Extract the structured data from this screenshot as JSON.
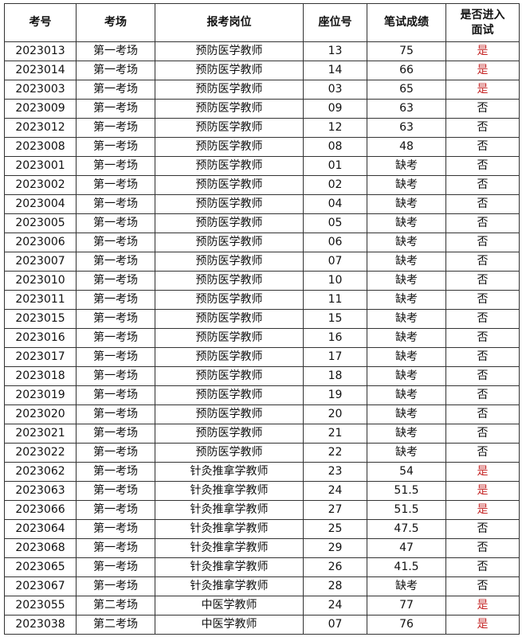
{
  "headers": [
    "考号",
    "考场",
    "报考岗位",
    "座位号",
    "笔试成绩",
    "是否进入面试"
  ],
  "accent_yes_color": "#c62828",
  "rows": [
    [
      "2023013",
      "第一考场",
      "预防医学教师",
      "13",
      "75",
      "是"
    ],
    [
      "2023014",
      "第一考场",
      "预防医学教师",
      "14",
      "66",
      "是"
    ],
    [
      "2023003",
      "第一考场",
      "预防医学教师",
      "03",
      "65",
      "是"
    ],
    [
      "2023009",
      "第一考场",
      "预防医学教师",
      "09",
      "63",
      "否"
    ],
    [
      "2023012",
      "第一考场",
      "预防医学教师",
      "12",
      "63",
      "否"
    ],
    [
      "2023008",
      "第一考场",
      "预防医学教师",
      "08",
      "48",
      "否"
    ],
    [
      "2023001",
      "第一考场",
      "预防医学教师",
      "01",
      "缺考",
      "否"
    ],
    [
      "2023002",
      "第一考场",
      "预防医学教师",
      "02",
      "缺考",
      "否"
    ],
    [
      "2023004",
      "第一考场",
      "预防医学教师",
      "04",
      "缺考",
      "否"
    ],
    [
      "2023005",
      "第一考场",
      "预防医学教师",
      "05",
      "缺考",
      "否"
    ],
    [
      "2023006",
      "第一考场",
      "预防医学教师",
      "06",
      "缺考",
      "否"
    ],
    [
      "2023007",
      "第一考场",
      "预防医学教师",
      "07",
      "缺考",
      "否"
    ],
    [
      "2023010",
      "第一考场",
      "预防医学教师",
      "10",
      "缺考",
      "否"
    ],
    [
      "2023011",
      "第一考场",
      "预防医学教师",
      "11",
      "缺考",
      "否"
    ],
    [
      "2023015",
      "第一考场",
      "预防医学教师",
      "15",
      "缺考",
      "否"
    ],
    [
      "2023016",
      "第一考场",
      "预防医学教师",
      "16",
      "缺考",
      "否"
    ],
    [
      "2023017",
      "第一考场",
      "预防医学教师",
      "17",
      "缺考",
      "否"
    ],
    [
      "2023018",
      "第一考场",
      "预防医学教师",
      "18",
      "缺考",
      "否"
    ],
    [
      "2023019",
      "第一考场",
      "预防医学教师",
      "19",
      "缺考",
      "否"
    ],
    [
      "2023020",
      "第一考场",
      "预防医学教师",
      "20",
      "缺考",
      "否"
    ],
    [
      "2023021",
      "第一考场",
      "预防医学教师",
      "21",
      "缺考",
      "否"
    ],
    [
      "2023022",
      "第一考场",
      "预防医学教师",
      "22",
      "缺考",
      "否"
    ],
    [
      "2023062",
      "第一考场",
      "针灸推拿学教师",
      "23",
      "54",
      "是"
    ],
    [
      "2023063",
      "第一考场",
      "针灸推拿学教师",
      "24",
      "51.5",
      "是"
    ],
    [
      "2023066",
      "第一考场",
      "针灸推拿学教师",
      "27",
      "51.5",
      "是"
    ],
    [
      "2023064",
      "第一考场",
      "针灸推拿学教师",
      "25",
      "47.5",
      "否"
    ],
    [
      "2023068",
      "第一考场",
      "针灸推拿学教师",
      "29",
      "47",
      "否"
    ],
    [
      "2023065",
      "第一考场",
      "针灸推拿学教师",
      "26",
      "41.5",
      "否"
    ],
    [
      "2023067",
      "第一考场",
      "针灸推拿学教师",
      "28",
      "缺考",
      "否"
    ],
    [
      "2023055",
      "第二考场",
      "中医学教师",
      "24",
      "77",
      "是"
    ],
    [
      "2023038",
      "第二考场",
      "中医学教师",
      "07",
      "76",
      "是"
    ]
  ]
}
